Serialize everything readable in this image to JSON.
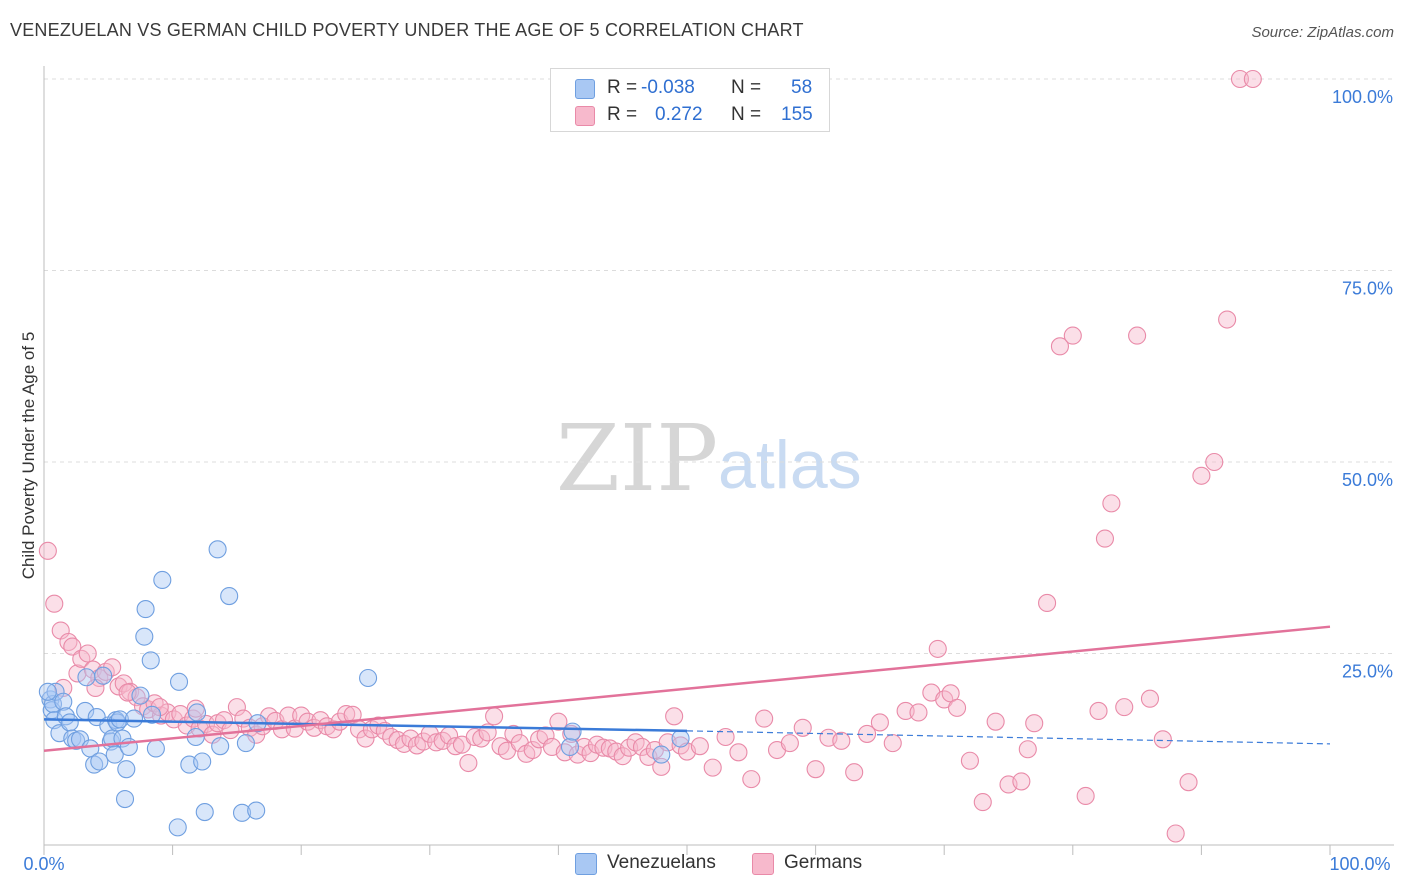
{
  "title": "VENEZUELAN VS GERMAN CHILD POVERTY UNDER THE AGE OF 5 CORRELATION CHART",
  "source": "Source: ZipAtlas.com",
  "watermark": {
    "zip": "ZIP",
    "atlas": "atlas"
  },
  "legend": {
    "rows": [
      {
        "r_label": "R =",
        "r_value": "-0.038",
        "n_label": "N =",
        "n_value": "58",
        "color": "#a9c8f3"
      },
      {
        "r_label": "R =",
        "r_value": "0.272",
        "n_label": "N =",
        "n_value": "155",
        "color": "#f7b9cc"
      }
    ]
  },
  "bottom_legend": [
    {
      "label": "Venezuelans",
      "color": "#a9c8f3"
    },
    {
      "label": "Germans",
      "color": "#f7b9cc"
    }
  ],
  "chart_data": {
    "type": "scatter",
    "title": "VENEZUELAN VS GERMAN CHILD POVERTY UNDER THE AGE OF 5 CORRELATION CHART",
    "xlabel": "",
    "ylabel": "Child Poverty Under the Age of 5",
    "xlim": [
      0,
      100
    ],
    "ylim": [
      0,
      100
    ],
    "x_tick_labels": [
      "0.0%",
      "100.0%"
    ],
    "y_tick_labels": [
      "25.0%",
      "50.0%",
      "75.0%",
      "100.0%"
    ],
    "y_ticks": [
      25,
      50,
      75,
      100
    ],
    "grid": true,
    "legend_position": "top-center",
    "colors": {
      "venezuelans": "#3b7bd8",
      "germans": "#e2729a",
      "venezuelans_fill": "#a9c8f3",
      "germans_fill": "#f7b9cc"
    },
    "series": [
      {
        "name": "Venezuelans",
        "trend": {
          "x0": 0,
          "y0": 16.4,
          "x1": 50,
          "y1": 14.9,
          "dashed_to_x": 100,
          "dashed_to_y": 13.2
        },
        "points": [
          [
            0.5,
            19
          ],
          [
            0.6,
            17.6
          ],
          [
            0.7,
            18.4
          ],
          [
            0.8,
            16.3
          ],
          [
            0.9,
            20
          ],
          [
            1.2,
            14.6
          ],
          [
            1.5,
            18.7
          ],
          [
            1.7,
            16.8
          ],
          [
            2,
            16
          ],
          [
            2.2,
            13.9
          ],
          [
            2.5,
            13.6
          ],
          [
            2.8,
            13.8
          ],
          [
            3.2,
            17.5
          ],
          [
            3.3,
            21.9
          ],
          [
            3.6,
            12.6
          ],
          [
            3.9,
            10.5
          ],
          [
            4.1,
            16.7
          ],
          [
            4.3,
            10.9
          ],
          [
            4.6,
            22.1
          ],
          [
            5,
            15.6
          ],
          [
            5.2,
            13.5
          ],
          [
            5.3,
            13.9
          ],
          [
            5.5,
            11.8
          ],
          [
            5.6,
            16.3
          ],
          [
            5.7,
            16
          ],
          [
            5.9,
            16.4
          ],
          [
            6.1,
            13.9
          ],
          [
            6.3,
            6
          ],
          [
            6.4,
            9.9
          ],
          [
            6.6,
            12.8
          ],
          [
            7.0,
            16.5
          ],
          [
            7.5,
            19.5
          ],
          [
            7.8,
            27.2
          ],
          [
            7.9,
            30.8
          ],
          [
            8.3,
            24.1
          ],
          [
            8.4,
            17
          ],
          [
            8.7,
            12.6
          ],
          [
            9.2,
            34.6
          ],
          [
            10.4,
            2.3
          ],
          [
            10.5,
            21.3
          ],
          [
            11.3,
            10.5
          ],
          [
            11.8,
            14.1
          ],
          [
            11.9,
            17.3
          ],
          [
            12.3,
            10.9
          ],
          [
            12.5,
            4.3
          ],
          [
            13.5,
            38.6
          ],
          [
            13.7,
            12.9
          ],
          [
            14.4,
            32.5
          ],
          [
            15.4,
            4.2
          ],
          [
            15.7,
            13.3
          ],
          [
            16.5,
            4.5
          ],
          [
            16.6,
            15.9
          ],
          [
            25.2,
            21.8
          ],
          [
            40.9,
            12.8
          ],
          [
            41.1,
            14.8
          ],
          [
            48,
            11.8
          ],
          [
            49.5,
            13.9
          ],
          [
            0.3,
            20
          ]
        ]
      },
      {
        "name": "Germans",
        "trend": {
          "x0": 0,
          "y0": 12.3,
          "x1": 100,
          "y1": 28.5
        },
        "points": [
          [
            0.3,
            38.4
          ],
          [
            0.8,
            31.5
          ],
          [
            1.3,
            28
          ],
          [
            1.9,
            26.5
          ],
          [
            2.2,
            25.9
          ],
          [
            2.6,
            22.4
          ],
          [
            2.9,
            24.3
          ],
          [
            3.4,
            25
          ],
          [
            3.8,
            22.9
          ],
          [
            4.3,
            21.8
          ],
          [
            4.8,
            22.6
          ],
          [
            5.3,
            23.2
          ],
          [
            5.8,
            20.7
          ],
          [
            6.2,
            21.1
          ],
          [
            6.7,
            20
          ],
          [
            7.2,
            19.3
          ],
          [
            7.7,
            18.1
          ],
          [
            8.1,
            17.7
          ],
          [
            8.6,
            18.5
          ],
          [
            9.1,
            16.9
          ],
          [
            9.6,
            17.3
          ],
          [
            10.1,
            16.4
          ],
          [
            10.6,
            17.1
          ],
          [
            11.1,
            15.6
          ],
          [
            11.6,
            16.5
          ],
          [
            12.1,
            15.2
          ],
          [
            12.6,
            15.8
          ],
          [
            13.1,
            14.4
          ],
          [
            13.5,
            15.9
          ],
          [
            14,
            16.3
          ],
          [
            14.5,
            15
          ],
          [
            15,
            18
          ],
          [
            15.5,
            16.5
          ],
          [
            16,
            15.3
          ],
          [
            16.5,
            14.4
          ],
          [
            17,
            15.5
          ],
          [
            17.5,
            16.8
          ],
          [
            18,
            16.2
          ],
          [
            18.5,
            15.1
          ],
          [
            19,
            16.9
          ],
          [
            19.5,
            15.2
          ],
          [
            20,
            16.9
          ],
          [
            20.5,
            16.1
          ],
          [
            21,
            15.3
          ],
          [
            21.5,
            16.3
          ],
          [
            22,
            15.5
          ],
          [
            22.5,
            15.1
          ],
          [
            23,
            16.1
          ],
          [
            23.5,
            17.1
          ],
          [
            24,
            17
          ],
          [
            24.5,
            15.1
          ],
          [
            25,
            13.9
          ],
          [
            25.5,
            15.1
          ],
          [
            26,
            15.6
          ],
          [
            26.5,
            14.9
          ],
          [
            27,
            14.1
          ],
          [
            27.5,
            13.7
          ],
          [
            28,
            13.2
          ],
          [
            28.5,
            13.9
          ],
          [
            29,
            13
          ],
          [
            29.5,
            13.5
          ],
          [
            30,
            14.5
          ],
          [
            30.5,
            13.4
          ],
          [
            31,
            13.6
          ],
          [
            31.5,
            14.3
          ],
          [
            32,
            12.9
          ],
          [
            32.5,
            13.1
          ],
          [
            33,
            10.7
          ],
          [
            33.5,
            14.1
          ],
          [
            34,
            13.9
          ],
          [
            34.5,
            14.7
          ],
          [
            35,
            16.8
          ],
          [
            35.5,
            12.9
          ],
          [
            36,
            12.3
          ],
          [
            36.5,
            14.5
          ],
          [
            37,
            13.3
          ],
          [
            37.5,
            11.9
          ],
          [
            38,
            12.4
          ],
          [
            38.5,
            13.8
          ],
          [
            39,
            14.3
          ],
          [
            39.5,
            12.8
          ],
          [
            40,
            16.1
          ],
          [
            40.5,
            12.1
          ],
          [
            41,
            14.5
          ],
          [
            41.5,
            11.8
          ],
          [
            42,
            12.8
          ],
          [
            42.5,
            12
          ],
          [
            43,
            13.1
          ],
          [
            43.5,
            12.7
          ],
          [
            44,
            12.6
          ],
          [
            44.5,
            12.2
          ],
          [
            45,
            11.6
          ],
          [
            45.5,
            12.7
          ],
          [
            46,
            13.4
          ],
          [
            46.5,
            12.8
          ],
          [
            47,
            11.5
          ],
          [
            47.5,
            12.4
          ],
          [
            48,
            10.2
          ],
          [
            48.5,
            13.4
          ],
          [
            49,
            16.8
          ],
          [
            49.5,
            13
          ],
          [
            50,
            12.2
          ],
          [
            51,
            12.9
          ],
          [
            52,
            10.1
          ],
          [
            53,
            14.1
          ],
          [
            54,
            12.1
          ],
          [
            55,
            8.6
          ],
          [
            56,
            16.5
          ],
          [
            57,
            12.4
          ],
          [
            58,
            13.3
          ],
          [
            59,
            15.3
          ],
          [
            60,
            9.9
          ],
          [
            61,
            14
          ],
          [
            62,
            13.6
          ],
          [
            63,
            9.5
          ],
          [
            64,
            14.5
          ],
          [
            65,
            16
          ],
          [
            66,
            13.3
          ],
          [
            67,
            17.5
          ],
          [
            68,
            17.3
          ],
          [
            69,
            19.9
          ],
          [
            69.5,
            25.6
          ],
          [
            70,
            19
          ],
          [
            70.5,
            19.8
          ],
          [
            71,
            17.9
          ],
          [
            72,
            11
          ],
          [
            73,
            5.6
          ],
          [
            74,
            16.1
          ],
          [
            75,
            7.9
          ],
          [
            76,
            8.3
          ],
          [
            76.5,
            12.5
          ],
          [
            77,
            15.9
          ],
          [
            78,
            31.6
          ],
          [
            79,
            65.1
          ],
          [
            80,
            66.5
          ],
          [
            81,
            6.4
          ],
          [
            82,
            17.5
          ],
          [
            82.5,
            40
          ],
          [
            83,
            44.6
          ],
          [
            84,
            18
          ],
          [
            85,
            66.5
          ],
          [
            86,
            19.1
          ],
          [
            87,
            13.8
          ],
          [
            88,
            1.5
          ],
          [
            89,
            8.2
          ],
          [
            90,
            48.2
          ],
          [
            91,
            50
          ],
          [
            92,
            68.6
          ],
          [
            93,
            100
          ],
          [
            94,
            100
          ],
          [
            1.5,
            20.5
          ],
          [
            4,
            20.5
          ],
          [
            6.5,
            19.9
          ],
          [
            9,
            18
          ],
          [
            11.8,
            17.8
          ]
        ]
      }
    ]
  }
}
